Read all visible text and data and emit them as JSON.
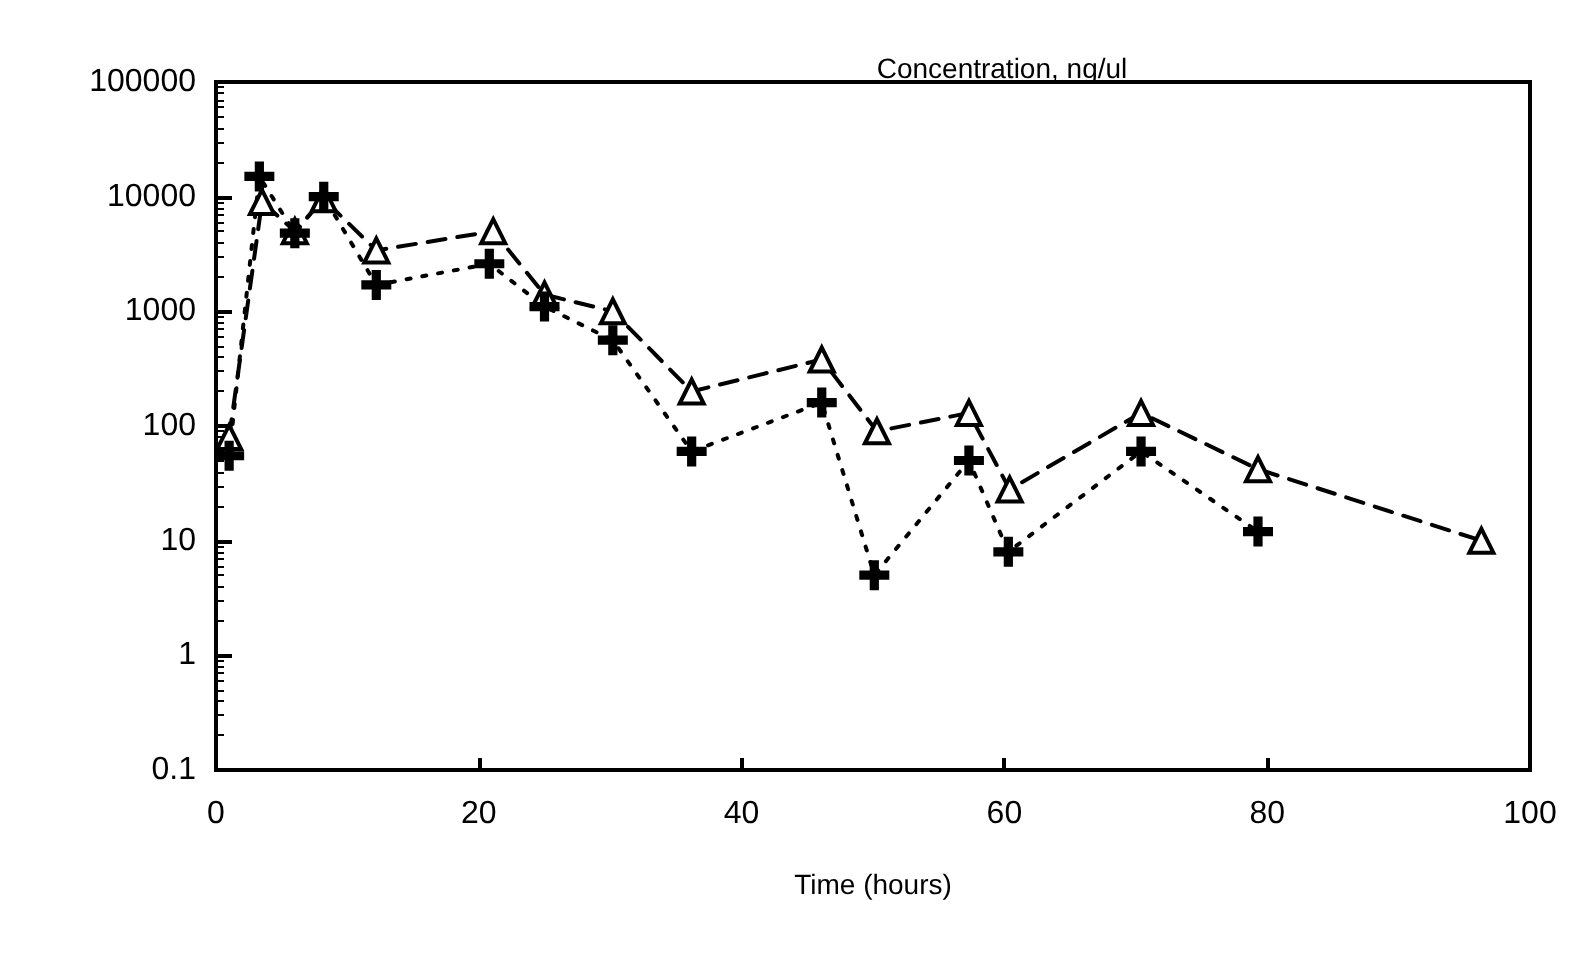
{
  "chart_data": {
    "type": "line",
    "title": "Concentration, ng/ul",
    "xlabel": "Time (hours)",
    "log": "y",
    "grid": false,
    "xlim": [
      0,
      100
    ],
    "xticks": [
      0,
      20,
      40,
      60,
      80,
      100
    ],
    "ylim": [
      0.1,
      100000
    ],
    "yticks": [
      0.1,
      1,
      10,
      100,
      1000,
      10000,
      100000
    ],
    "series": [
      {
        "color": "#000000",
        "marker": "triangle",
        "line_style": "dashed",
        "x": [
          1,
          3.5,
          6,
          8.2,
          12.2,
          21.1,
          25,
          30.2,
          36.2,
          46.1,
          50.3,
          57.3,
          60.4,
          70.4,
          79.3,
          96.3
        ],
        "values": [
          80,
          9000,
          5000,
          9500,
          3400,
          5000,
          1400,
          1000,
          200,
          380,
          90,
          130,
          28,
          130,
          42,
          10
        ]
      },
      {
        "color": "#000000",
        "marker": "cross",
        "line_style": "dotted",
        "x": [
          1,
          3.3,
          6,
          8.2,
          12.2,
          20.8,
          25,
          30.2,
          36.2,
          46.1,
          50.1,
          57.3,
          60.3,
          70.4,
          79.3
        ],
        "values": [
          55,
          15000,
          4800,
          10000,
          1700,
          2600,
          1100,
          560,
          60,
          160,
          5,
          50,
          8,
          60,
          12
        ]
      }
    ]
  }
}
